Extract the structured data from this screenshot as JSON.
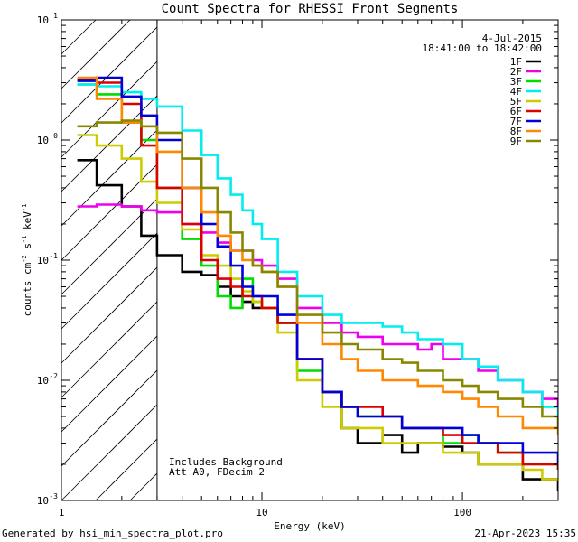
{
  "chart_data": {
    "type": "line",
    "title": "Count Spectra for RHESSI Front Segments",
    "xlabel": "Energy (keV)",
    "ylabel_parts": [
      "counts cm",
      "-2",
      " s",
      "-1",
      " keV",
      "-1"
    ],
    "xscale": "log",
    "yscale": "log",
    "xlim": [
      1,
      300
    ],
    "ylim": [
      0.001,
      10
    ],
    "x_ticks": [
      {
        "value": 1,
        "label": "1"
      },
      {
        "value": 10,
        "label": "10"
      },
      {
        "value": 100,
        "label": "100"
      }
    ],
    "y_ticks": [
      {
        "value": 0.001,
        "label": "10",
        "exp": "-3"
      },
      {
        "value": 0.01,
        "label": "10",
        "exp": "-2"
      },
      {
        "value": 0.1,
        "label": "10",
        "exp": "-1"
      },
      {
        "value": 1,
        "label": "10",
        "exp": "0"
      },
      {
        "value": 10,
        "label": "10",
        "exp": "1"
      }
    ],
    "date_label": "4-Jul-2015",
    "time_range_label": "18:41:00 to 18:42:00",
    "shaded_region_xmax": 3,
    "annotation_lines": [
      "Includes Background",
      "Att A0, FDecim 2"
    ],
    "series": [
      {
        "name": "1F",
        "color": "#000000",
        "points": [
          [
            1.2,
            0.68
          ],
          [
            1.5,
            0.42
          ],
          [
            2,
            0.28
          ],
          [
            2.5,
            0.16
          ],
          [
            3,
            0.11
          ],
          [
            4,
            0.08
          ],
          [
            5,
            0.075
          ],
          [
            6,
            0.06
          ],
          [
            7,
            0.05
          ],
          [
            8,
            0.045
          ],
          [
            9,
            0.04
          ],
          [
            10,
            0.04
          ],
          [
            12,
            0.03
          ],
          [
            15,
            0.015
          ],
          [
            20,
            0.008
          ],
          [
            25,
            0.004
          ],
          [
            30,
            0.003
          ],
          [
            40,
            0.0035
          ],
          [
            50,
            0.0025
          ],
          [
            60,
            0.003
          ],
          [
            80,
            0.0028
          ],
          [
            100,
            0.0025
          ],
          [
            120,
            0.002
          ],
          [
            150,
            0.002
          ],
          [
            200,
            0.0015
          ],
          [
            250,
            0.0015
          ],
          [
            300,
            0.0012
          ]
        ]
      },
      {
        "name": "2F",
        "color": "#ee00ee",
        "points": [
          [
            1.2,
            0.28
          ],
          [
            1.5,
            0.29
          ],
          [
            2,
            0.28
          ],
          [
            2.5,
            0.26
          ],
          [
            3,
            0.25
          ],
          [
            4,
            0.2
          ],
          [
            5,
            0.17
          ],
          [
            6,
            0.14
          ],
          [
            7,
            0.12
          ],
          [
            8,
            0.12
          ],
          [
            9,
            0.1
          ],
          [
            10,
            0.09
          ],
          [
            12,
            0.07
          ],
          [
            15,
            0.04
          ],
          [
            20,
            0.03
          ],
          [
            25,
            0.025
          ],
          [
            30,
            0.023
          ],
          [
            40,
            0.02
          ],
          [
            50,
            0.02
          ],
          [
            60,
            0.018
          ],
          [
            70,
            0.02
          ],
          [
            80,
            0.015
          ],
          [
            100,
            0.015
          ],
          [
            120,
            0.012
          ],
          [
            150,
            0.01
          ],
          [
            200,
            0.008
          ],
          [
            250,
            0.007
          ],
          [
            300,
            0.006
          ]
        ]
      },
      {
        "name": "3F",
        "color": "#00dd00",
        "points": [
          [
            1.2,
            2.9
          ],
          [
            1.5,
            2.4
          ],
          [
            2,
            1.4
          ],
          [
            2.5,
            1.0
          ],
          [
            3,
            0.4
          ],
          [
            4,
            0.15
          ],
          [
            5,
            0.09
          ],
          [
            6,
            0.05
          ],
          [
            7,
            0.04
          ],
          [
            8,
            0.07
          ],
          [
            9,
            0.045
          ],
          [
            10,
            0.04
          ],
          [
            12,
            0.03
          ],
          [
            15,
            0.012
          ],
          [
            20,
            0.008
          ],
          [
            25,
            0.006
          ],
          [
            30,
            0.005
          ],
          [
            40,
            0.005
          ],
          [
            50,
            0.004
          ],
          [
            60,
            0.004
          ],
          [
            80,
            0.003
          ],
          [
            100,
            0.0035
          ],
          [
            120,
            0.003
          ],
          [
            150,
            0.0025
          ],
          [
            200,
            0.002
          ],
          [
            250,
            0.002
          ],
          [
            300,
            0.0018
          ]
        ]
      },
      {
        "name": "4F",
        "color": "#00eeee",
        "points": [
          [
            1.2,
            2.9
          ],
          [
            1.5,
            2.8
          ],
          [
            2,
            2.5
          ],
          [
            2.5,
            2.2
          ],
          [
            3,
            1.9
          ],
          [
            4,
            1.2
          ],
          [
            5,
            0.75
          ],
          [
            6,
            0.48
          ],
          [
            7,
            0.35
          ],
          [
            8,
            0.26
          ],
          [
            9,
            0.2
          ],
          [
            10,
            0.15
          ],
          [
            12,
            0.08
          ],
          [
            15,
            0.05
          ],
          [
            20,
            0.035
          ],
          [
            25,
            0.03
          ],
          [
            30,
            0.03
          ],
          [
            40,
            0.028
          ],
          [
            50,
            0.025
          ],
          [
            60,
            0.022
          ],
          [
            80,
            0.02
          ],
          [
            100,
            0.015
          ],
          [
            120,
            0.013
          ],
          [
            150,
            0.01
          ],
          [
            200,
            0.008
          ],
          [
            250,
            0.006
          ],
          [
            300,
            0.005
          ]
        ]
      },
      {
        "name": "5F",
        "color": "#cccc00",
        "points": [
          [
            1.2,
            1.1
          ],
          [
            1.5,
            0.9
          ],
          [
            2,
            0.7
          ],
          [
            2.5,
            0.45
          ],
          [
            3,
            0.3
          ],
          [
            4,
            0.18
          ],
          [
            5,
            0.11
          ],
          [
            6,
            0.09
          ],
          [
            7,
            0.07
          ],
          [
            8,
            0.055
          ],
          [
            9,
            0.045
          ],
          [
            10,
            0.04
          ],
          [
            12,
            0.025
          ],
          [
            15,
            0.01
          ],
          [
            20,
            0.006
          ],
          [
            25,
            0.004
          ],
          [
            30,
            0.004
          ],
          [
            40,
            0.003
          ],
          [
            50,
            0.003
          ],
          [
            60,
            0.003
          ],
          [
            80,
            0.0025
          ],
          [
            100,
            0.0025
          ],
          [
            120,
            0.002
          ],
          [
            150,
            0.002
          ],
          [
            200,
            0.0018
          ],
          [
            250,
            0.0015
          ],
          [
            300,
            0.0015
          ]
        ]
      },
      {
        "name": "6F",
        "color": "#dd0000",
        "points": [
          [
            1.2,
            3.2
          ],
          [
            1.5,
            3.0
          ],
          [
            2,
            2.0
          ],
          [
            2.5,
            0.9
          ],
          [
            3,
            0.4
          ],
          [
            4,
            0.2
          ],
          [
            5,
            0.1
          ],
          [
            6,
            0.07
          ],
          [
            7,
            0.06
          ],
          [
            8,
            0.05
          ],
          [
            9,
            0.05
          ],
          [
            10,
            0.04
          ],
          [
            12,
            0.03
          ],
          [
            15,
            0.015
          ],
          [
            20,
            0.008
          ],
          [
            25,
            0.006
          ],
          [
            30,
            0.006
          ],
          [
            40,
            0.005
          ],
          [
            50,
            0.004
          ],
          [
            60,
            0.004
          ],
          [
            80,
            0.0035
          ],
          [
            100,
            0.003
          ],
          [
            120,
            0.003
          ],
          [
            150,
            0.0025
          ],
          [
            200,
            0.002
          ],
          [
            250,
            0.002
          ],
          [
            300,
            0.0018
          ]
        ]
      },
      {
        "name": "7F",
        "color": "#0000dd",
        "points": [
          [
            1.2,
            3.1
          ],
          [
            1.5,
            3.3
          ],
          [
            2,
            2.3
          ],
          [
            2.5,
            1.6
          ],
          [
            3,
            1.0
          ],
          [
            4,
            0.4
          ],
          [
            5,
            0.2
          ],
          [
            6,
            0.13
          ],
          [
            7,
            0.09
          ],
          [
            8,
            0.06
          ],
          [
            9,
            0.05
          ],
          [
            10,
            0.05
          ],
          [
            12,
            0.035
          ],
          [
            15,
            0.015
          ],
          [
            20,
            0.008
          ],
          [
            25,
            0.006
          ],
          [
            30,
            0.005
          ],
          [
            40,
            0.005
          ],
          [
            50,
            0.004
          ],
          [
            60,
            0.004
          ],
          [
            80,
            0.004
          ],
          [
            100,
            0.0035
          ],
          [
            120,
            0.003
          ],
          [
            150,
            0.003
          ],
          [
            200,
            0.0025
          ],
          [
            250,
            0.0025
          ],
          [
            300,
            0.002
          ]
        ]
      },
      {
        "name": "8F",
        "color": "#ff8800",
        "points": [
          [
            1.2,
            3.3
          ],
          [
            1.5,
            2.2
          ],
          [
            2,
            1.4
          ],
          [
            2.5,
            1.3
          ],
          [
            3,
            0.8
          ],
          [
            4,
            0.4
          ],
          [
            5,
            0.25
          ],
          [
            6,
            0.16
          ],
          [
            7,
            0.12
          ],
          [
            8,
            0.1
          ],
          [
            9,
            0.09
          ],
          [
            10,
            0.08
          ],
          [
            12,
            0.06
          ],
          [
            15,
            0.03
          ],
          [
            20,
            0.02
          ],
          [
            25,
            0.015
          ],
          [
            30,
            0.012
          ],
          [
            40,
            0.01
          ],
          [
            50,
            0.01
          ],
          [
            60,
            0.009
          ],
          [
            80,
            0.008
          ],
          [
            100,
            0.007
          ],
          [
            120,
            0.006
          ],
          [
            150,
            0.005
          ],
          [
            200,
            0.004
          ],
          [
            250,
            0.004
          ],
          [
            300,
            0.0035
          ]
        ]
      },
      {
        "name": "9F",
        "color": "#888800",
        "points": [
          [
            1.2,
            1.3
          ],
          [
            1.5,
            1.4
          ],
          [
            2,
            1.45
          ],
          [
            2.5,
            1.3
          ],
          [
            3,
            1.15
          ],
          [
            4,
            0.7
          ],
          [
            5,
            0.4
          ],
          [
            6,
            0.25
          ],
          [
            7,
            0.17
          ],
          [
            8,
            0.12
          ],
          [
            9,
            0.09
          ],
          [
            10,
            0.08
          ],
          [
            12,
            0.06
          ],
          [
            15,
            0.035
          ],
          [
            20,
            0.025
          ],
          [
            25,
            0.02
          ],
          [
            30,
            0.018
          ],
          [
            40,
            0.015
          ],
          [
            50,
            0.014
          ],
          [
            60,
            0.012
          ],
          [
            80,
            0.01
          ],
          [
            100,
            0.009
          ],
          [
            120,
            0.008
          ],
          [
            150,
            0.007
          ],
          [
            200,
            0.006
          ],
          [
            250,
            0.005
          ],
          [
            300,
            0.004
          ]
        ]
      }
    ]
  },
  "footer": {
    "generated_by": "Generated by hsi_min_spectra_plot.pro",
    "timestamp": "21-Apr-2023 15:35"
  }
}
